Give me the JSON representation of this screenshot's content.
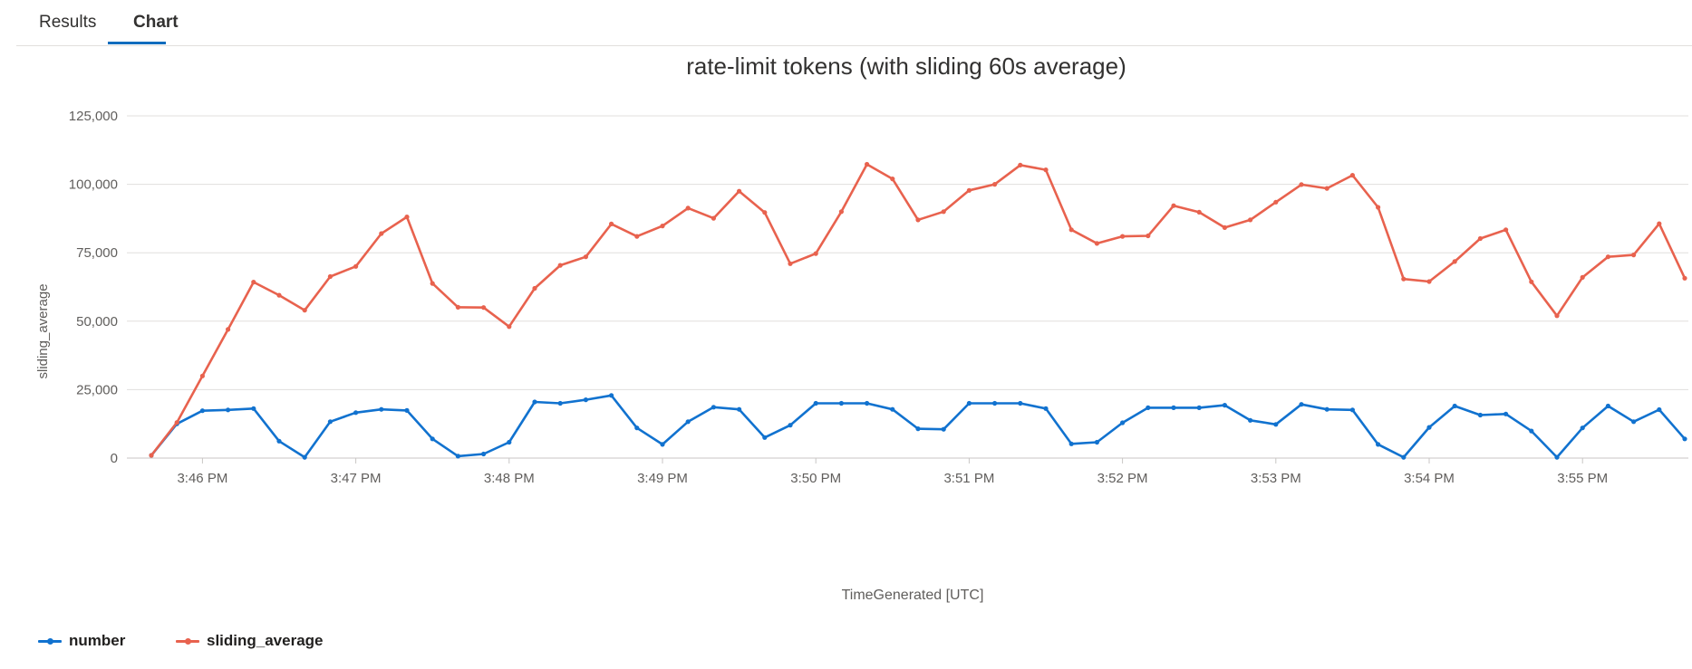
{
  "tabs": [
    {
      "label": "Results",
      "active": false
    },
    {
      "label": "Chart",
      "active": true
    }
  ],
  "chart_data": {
    "type": "line",
    "title": "rate-limit tokens (with sliding 60s average)",
    "xlabel": "TimeGenerated [UTC]",
    "ylabel": "sliding_average",
    "ylim": [
      0,
      125000
    ],
    "yticks": [
      0,
      25000,
      50000,
      75000,
      100000,
      125000
    ],
    "ytick_labels": [
      "0",
      "25,000",
      "50,000",
      "75,000",
      "100,000",
      "125,000"
    ],
    "x_range": [
      "3:45:40 PM",
      "3:55:40 PM"
    ],
    "x_interval_seconds": 10,
    "xticks": [
      "3:46 PM",
      "3:47 PM",
      "3:48 PM",
      "3:49 PM",
      "3:50 PM",
      "3:51 PM",
      "3:52 PM",
      "3:53 PM",
      "3:54 PM",
      "3:55 PM"
    ],
    "grid": true,
    "legend_position": "bottom-left",
    "series": [
      {
        "name": "number",
        "color": "#1172cf",
        "values": [
          1000,
          12500,
          17300,
          17600,
          18100,
          6200,
          300,
          13300,
          16600,
          17800,
          17400,
          7000,
          700,
          1500,
          5800,
          20500,
          20000,
          21300,
          22900,
          11000,
          5000,
          13300,
          18600,
          17800,
          7500,
          12000,
          20000,
          20000,
          20000,
          17800,
          10700,
          10500,
          20000,
          20000,
          20000,
          18100,
          5200,
          5800,
          12900,
          18400,
          18400,
          18400,
          19300,
          13800,
          12300,
          19600,
          17800,
          17600,
          5000,
          300,
          11200,
          19000,
          15700,
          16100,
          9900,
          300,
          11000,
          19000,
          13300,
          17700,
          7000
        ]
      },
      {
        "name": "sliding_average",
        "color": "#e8624e",
        "values": [
          1000,
          13000,
          30000,
          47000,
          64300,
          59500,
          54000,
          66300,
          70000,
          82000,
          88100,
          63800,
          55100,
          55000,
          48000,
          62000,
          70400,
          73500,
          85500,
          81000,
          84800,
          91300,
          87600,
          97500,
          89700,
          71000,
          74700,
          90000,
          107300,
          102000,
          87000,
          90000,
          97800,
          100000,
          107000,
          105300,
          83400,
          78400,
          81000,
          81200,
          92200,
          89800,
          84200,
          87000,
          93500,
          99900,
          98500,
          103300,
          91600,
          65400,
          64500,
          71800,
          80200,
          83400,
          64400,
          52000,
          66000,
          73500,
          74200,
          85600,
          65700
        ]
      }
    ]
  }
}
